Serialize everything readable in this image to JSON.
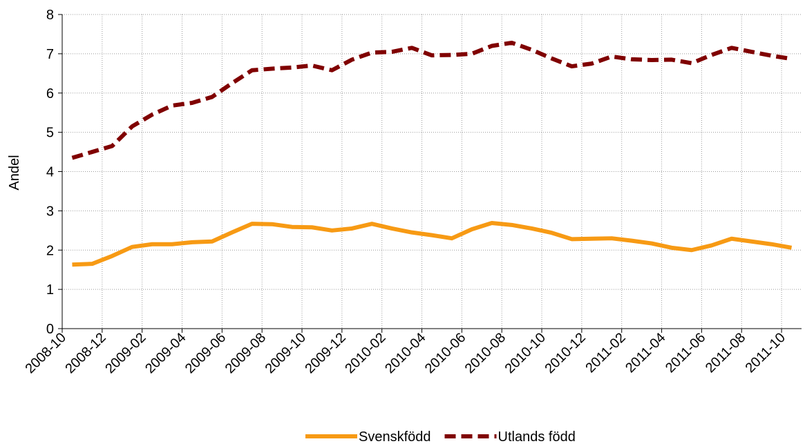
{
  "chart_data": {
    "type": "line",
    "y_label": "Andel",
    "categories": [
      "2008-10",
      null,
      "2008-12",
      null,
      "2009-02",
      null,
      "2009-04",
      null,
      "2009-06",
      null,
      "2009-08",
      null,
      "2009-10",
      null,
      "2009-12",
      null,
      "2010-02",
      null,
      "2010-04",
      null,
      "2010-06",
      null,
      "2010-08",
      null,
      "2010-10",
      null,
      "2010-12",
      null,
      "2011-02",
      null,
      "2011-04",
      null,
      "2011-06",
      null,
      "2011-08",
      null,
      "2011-10"
    ],
    "series": [
      {
        "name": "Svenskfödd",
        "color": "#f79a14",
        "dash": "solid",
        "values": [
          1.63,
          1.65,
          1.85,
          2.08,
          2.15,
          2.15,
          2.2,
          2.22,
          2.45,
          2.67,
          2.66,
          2.59,
          2.58,
          2.5,
          2.55,
          2.67,
          2.55,
          2.45,
          2.38,
          2.3,
          2.53,
          2.69,
          2.64,
          2.55,
          2.44,
          2.28,
          2.29,
          2.3,
          2.24,
          2.17,
          2.06,
          2.0,
          2.12,
          2.29,
          2.22,
          2.15,
          2.06
        ]
      },
      {
        "name": "Utlands född",
        "color": "#800000",
        "dash": "dashed",
        "values": [
          4.35,
          4.5,
          4.65,
          5.15,
          5.45,
          5.68,
          5.75,
          5.9,
          6.25,
          6.58,
          6.62,
          6.65,
          6.7,
          6.58,
          6.85,
          7.03,
          7.05,
          7.15,
          6.96,
          6.97,
          7.0,
          7.2,
          7.28,
          7.1,
          6.88,
          6.68,
          6.75,
          6.93,
          6.86,
          6.84,
          6.85,
          6.76,
          6.97,
          7.15,
          7.05,
          6.95,
          6.87
        ]
      }
    ],
    "ylim": [
      0,
      8
    ],
    "yticks": [
      0,
      1,
      2,
      3,
      4,
      5,
      6,
      7,
      8
    ],
    "grid": true,
    "legend": "bottom"
  }
}
